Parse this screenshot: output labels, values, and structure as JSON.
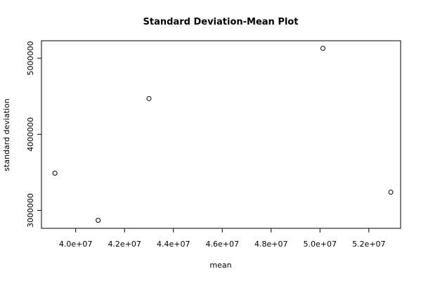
{
  "chart_data": {
    "type": "scatter",
    "title": "Standard Deviation-Mean Plot",
    "xlabel": "mean",
    "ylabel": "standard deviation",
    "xlim": [
      38600000,
      53300000
    ],
    "ylim": [
      2765000,
      5230000
    ],
    "x_ticks": [
      {
        "value": 40000000,
        "label": "4.0e+07"
      },
      {
        "value": 42000000,
        "label": "4.2e+07"
      },
      {
        "value": 44000000,
        "label": "4.4e+07"
      },
      {
        "value": 46000000,
        "label": "4.6e+07"
      },
      {
        "value": 48000000,
        "label": "4.8e+07"
      },
      {
        "value": 50000000,
        "label": "5.0e+07"
      },
      {
        "value": 52000000,
        "label": "5.2e+07"
      }
    ],
    "y_ticks": [
      {
        "value": 3000000,
        "label": "3000000"
      },
      {
        "value": 4000000,
        "label": "4000000"
      },
      {
        "value": 5000000,
        "label": "5000000"
      }
    ],
    "grid": false,
    "points": [
      {
        "x": 39150000,
        "y": 3490000
      },
      {
        "x": 40920000,
        "y": 2870000
      },
      {
        "x": 43000000,
        "y": 4470000
      },
      {
        "x": 50120000,
        "y": 5130000
      },
      {
        "x": 52900000,
        "y": 3240000
      }
    ]
  }
}
